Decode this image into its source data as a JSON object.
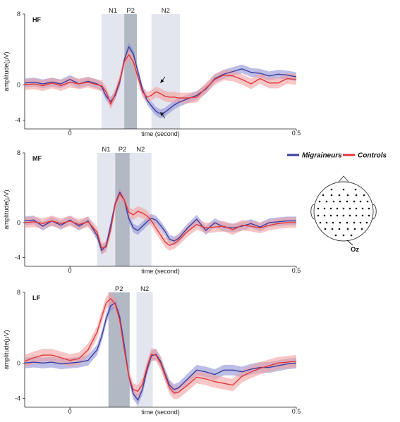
{
  "colors": {
    "migraineurs": "#3b3fa0",
    "migraineurs_band": "#8f93d6",
    "controls": "#e0393b",
    "controls_band": "#f2a0a0",
    "window_light": "#d9dde8",
    "window_dark": "#a5adbb"
  },
  "legend": {
    "items": [
      {
        "label": "Migraineurs",
        "color": "#3b3fa0"
      },
      {
        "label": "Controls",
        "color": "#e0393b"
      }
    ]
  },
  "head_map": {
    "electrode_label": "Oz"
  },
  "chart_data": [
    {
      "type": "line",
      "panel_label": "HF",
      "xlabel": "time (second)",
      "ylabel": "amplitude(μV)",
      "xlim": [
        -0.1,
        0.5
      ],
      "ylim": [
        -5,
        8
      ],
      "x_ticks": [
        {
          "value": 0,
          "label": "0"
        },
        {
          "value": 0.5,
          "label": "0.5"
        }
      ],
      "y_ticks": [
        {
          "value": 8,
          "label": "8"
        },
        {
          "value": 0,
          "label": "0"
        },
        {
          "value": -4,
          "label": "-4"
        }
      ],
      "windows": [
        {
          "label": "N1",
          "x0": 0.07,
          "x1": 0.12,
          "shade": "light"
        },
        {
          "label": "P2",
          "x0": 0.12,
          "x1": 0.148,
          "shade": "dark"
        },
        {
          "label": "N2",
          "x0": 0.18,
          "x1": 0.243,
          "shade": "light"
        }
      ],
      "arrows": [
        {
          "from": [
            0.21,
            0.9
          ],
          "to": [
            0.2,
            0.2
          ]
        },
        {
          "from": [
            0.21,
            -3.8
          ],
          "to": [
            0.2,
            -3.1
          ]
        }
      ],
      "x": [
        -0.1,
        -0.08,
        -0.06,
        -0.04,
        -0.02,
        0,
        0.02,
        0.04,
        0.06,
        0.07,
        0.08,
        0.09,
        0.1,
        0.11,
        0.12,
        0.13,
        0.14,
        0.15,
        0.16,
        0.17,
        0.18,
        0.19,
        0.2,
        0.21,
        0.22,
        0.23,
        0.24,
        0.26,
        0.28,
        0.3,
        0.32,
        0.34,
        0.36,
        0.38,
        0.4,
        0.42,
        0.44,
        0.46,
        0.48,
        0.5
      ],
      "series": [
        {
          "name": "Migraineurs",
          "band": 0.5,
          "values": [
            0.2,
            0.3,
            0.1,
            0.3,
            0.1,
            0.6,
            0.1,
            0.4,
            0.1,
            -0.2,
            -1.3,
            -1.9,
            -1.2,
            0.3,
            2.8,
            4.3,
            3.5,
            1.5,
            -0.5,
            -1.7,
            -2.4,
            -3.0,
            -3.3,
            -3.1,
            -2.7,
            -2.3,
            -2.0,
            -1.6,
            -1.2,
            -0.5,
            0.7,
            1.2,
            1.5,
            1.8,
            1.4,
            1.3,
            1.0,
            1.2,
            1.1,
            0.9
          ]
        },
        {
          "name": "Controls",
          "band": 0.6,
          "values": [
            0.0,
            0.1,
            -0.1,
            0.2,
            -0.1,
            0.3,
            0.1,
            0.3,
            0.0,
            -0.1,
            -0.8,
            -2.2,
            -1.0,
            0.5,
            2.6,
            3.4,
            2.6,
            0.9,
            -0.8,
            -1.4,
            -1.2,
            -0.8,
            -1.0,
            -1.3,
            -1.4,
            -1.4,
            -1.5,
            -1.5,
            -1.4,
            -0.4,
            0.6,
            1.1,
            1.0,
            0.6,
            0.1,
            0.7,
            0.2,
            0.2,
            0.7,
            0.6
          ]
        }
      ]
    },
    {
      "type": "line",
      "panel_label": "MF",
      "xlabel": "time (second)",
      "ylabel": "amplitude(μV)",
      "xlim": [
        -0.1,
        0.5
      ],
      "ylim": [
        -5,
        8
      ],
      "x_ticks": [
        {
          "value": 0,
          "label": "0"
        },
        {
          "value": 0.5,
          "label": "0.5"
        }
      ],
      "y_ticks": [
        {
          "value": 8,
          "label": "8"
        },
        {
          "value": 0,
          "label": "0"
        },
        {
          "value": -4,
          "label": "-4"
        }
      ],
      "windows": [
        {
          "label": "N1",
          "x0": 0.06,
          "x1": 0.1,
          "shade": "light"
        },
        {
          "label": "P2",
          "x0": 0.1,
          "x1": 0.132,
          "shade": "dark"
        },
        {
          "label": "N2",
          "x0": 0.132,
          "x1": 0.18,
          "shade": "light"
        }
      ],
      "arrows": [],
      "x": [
        -0.1,
        -0.08,
        -0.06,
        -0.04,
        -0.02,
        0,
        0.02,
        0.04,
        0.06,
        0.07,
        0.08,
        0.09,
        0.1,
        0.11,
        0.12,
        0.13,
        0.14,
        0.15,
        0.16,
        0.17,
        0.18,
        0.19,
        0.2,
        0.21,
        0.22,
        0.23,
        0.24,
        0.26,
        0.28,
        0.3,
        0.32,
        0.34,
        0.36,
        0.38,
        0.4,
        0.42,
        0.44,
        0.46,
        0.48,
        0.5
      ],
      "series": [
        {
          "name": "Migraineurs",
          "band": 0.5,
          "values": [
            0.2,
            0.3,
            -0.4,
            0.2,
            -0.3,
            0.3,
            -0.4,
            0.2,
            -1.5,
            -3.2,
            -2.6,
            -0.3,
            2.2,
            3.5,
            2.6,
            0.5,
            -0.6,
            -0.9,
            -0.4,
            0.1,
            0.5,
            0.3,
            -0.3,
            -1.0,
            -1.9,
            -2.1,
            -1.8,
            -0.6,
            0.4,
            -0.9,
            0.0,
            -0.5,
            -0.6,
            -0.4,
            -0.1,
            -0.5,
            0.0,
            0.1,
            0.2,
            0.2
          ]
        },
        {
          "name": "Controls",
          "band": 0.6,
          "values": [
            0.0,
            0.1,
            -0.1,
            0.2,
            -0.1,
            0.2,
            -0.2,
            0.1,
            -1.1,
            -2.9,
            -2.8,
            -0.8,
            2.1,
            3.3,
            2.6,
            1.2,
            0.9,
            1.3,
            1.1,
            0.8,
            0.2,
            -0.6,
            -1.4,
            -2.2,
            -2.6,
            -2.4,
            -2.0,
            -1.0,
            -0.2,
            -0.6,
            -0.5,
            -0.4,
            -0.8,
            -0.3,
            -0.4,
            -0.6,
            -0.3,
            -0.1,
            0.0,
            0.0
          ]
        }
      ]
    },
    {
      "type": "line",
      "panel_label": "LF",
      "xlabel": "time (second)",
      "ylabel": "amplitude(μV)",
      "xlim": [
        -0.1,
        0.5
      ],
      "ylim": [
        -5,
        8
      ],
      "x_ticks": [
        {
          "value": 0,
          "label": "0"
        },
        {
          "value": 0.5,
          "label": "0.5"
        }
      ],
      "y_ticks": [
        {
          "value": 8,
          "label": "8"
        },
        {
          "value": 0,
          "label": "0"
        },
        {
          "value": -4,
          "label": "-4"
        }
      ],
      "windows": [
        {
          "label": "P2",
          "x0": 0.085,
          "x1": 0.132,
          "shade": "dark"
        },
        {
          "label": "N2",
          "x0": 0.147,
          "x1": 0.183,
          "shade": "light"
        }
      ],
      "arrows": [],
      "x": [
        -0.1,
        -0.08,
        -0.06,
        -0.04,
        -0.02,
        0,
        0.02,
        0.04,
        0.06,
        0.07,
        0.08,
        0.09,
        0.1,
        0.11,
        0.12,
        0.13,
        0.14,
        0.15,
        0.16,
        0.17,
        0.18,
        0.19,
        0.2,
        0.21,
        0.22,
        0.23,
        0.24,
        0.26,
        0.28,
        0.3,
        0.32,
        0.34,
        0.36,
        0.38,
        0.4,
        0.42,
        0.44,
        0.46,
        0.48,
        0.5
      ],
      "series": [
        {
          "name": "Migraineurs",
          "band": 0.6,
          "values": [
            0.0,
            0.1,
            0.0,
            0.1,
            -0.1,
            0.0,
            0.1,
            0.3,
            1.5,
            3.0,
            5.0,
            6.5,
            6.8,
            5.2,
            2.0,
            -1.5,
            -3.5,
            -4.2,
            -3.0,
            -0.8,
            0.8,
            1.0,
            0.2,
            -1.2,
            -2.5,
            -3.0,
            -2.8,
            -1.8,
            -0.8,
            -1.0,
            -1.3,
            -0.8,
            -0.8,
            -1.0,
            -0.7,
            -0.5,
            -0.5,
            -0.3,
            -0.1,
            0.0
          ]
        },
        {
          "name": "Controls",
          "band": 0.7,
          "values": [
            0.2,
            0.6,
            0.9,
            0.9,
            0.6,
            0.3,
            0.5,
            1.5,
            3.5,
            5.2,
            6.8,
            7.3,
            6.7,
            4.8,
            1.5,
            -1.5,
            -3.0,
            -3.2,
            -2.4,
            -0.5,
            1.0,
            0.9,
            0.0,
            -1.4,
            -2.8,
            -3.4,
            -3.3,
            -2.5,
            -1.6,
            -1.8,
            -2.1,
            -2.3,
            -2.5,
            -1.5,
            -1.0,
            -0.6,
            -0.3,
            0.0,
            0.1,
            0.2
          ]
        }
      ]
    }
  ]
}
